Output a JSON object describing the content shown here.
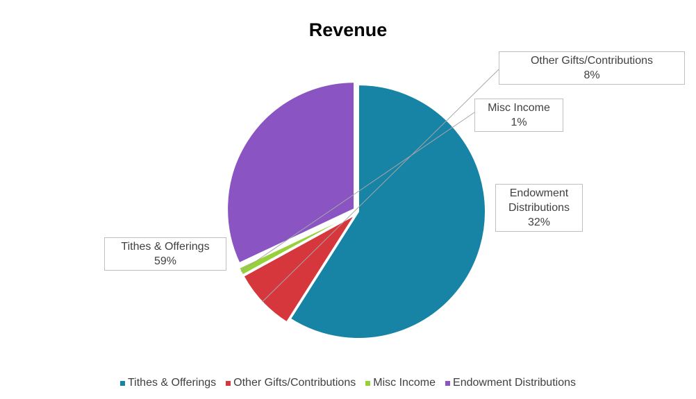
{
  "chart_data": {
    "type": "pie",
    "title": "Revenue",
    "slices": [
      {
        "name": "Tithes & Offerings",
        "value": 59,
        "label": "59%",
        "color": "#1784A6"
      },
      {
        "name": "Other Gifts/Contributions",
        "value": 8,
        "label": "8%",
        "color": "#D6373C"
      },
      {
        "name": "Misc Income",
        "value": 1,
        "label": "1%",
        "color": "#97D13A"
      },
      {
        "name": "Endowment Distributions",
        "value": 32,
        "label": "32%",
        "color": "#8A54C2"
      }
    ],
    "start_angle_deg": 0,
    "direction": "clockwise",
    "exploded": true,
    "legend_position": "bottom",
    "data_labels": "category name and percentage in callout boxes with leader lines"
  }
}
